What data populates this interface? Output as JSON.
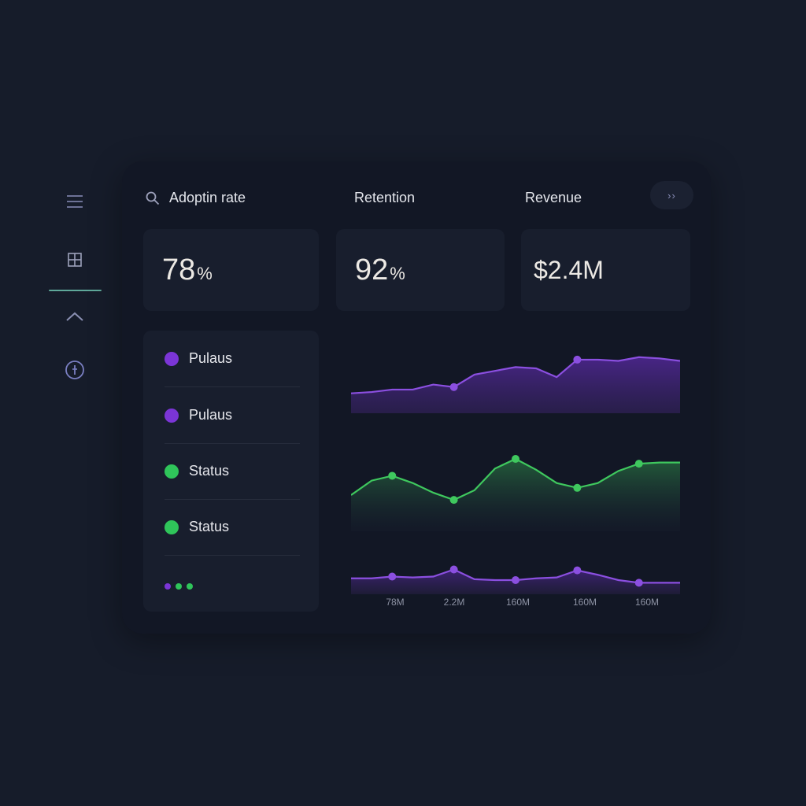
{
  "sidebar": {
    "icons": [
      {
        "name": "menu-icon"
      },
      {
        "name": "grid-icon"
      },
      {
        "name": "chevron-up-icon"
      },
      {
        "name": "info-icon"
      }
    ],
    "active_indicator_color": "#5fa89a"
  },
  "header": {
    "search_icon": "search-icon",
    "columns": [
      {
        "label": "Adoptin rate"
      },
      {
        "label": "Retention"
      },
      {
        "label": "Revenue"
      }
    ],
    "more_button_label": "››"
  },
  "metrics": [
    {
      "label": "Adoptin rate",
      "value": "78",
      "unit": "%"
    },
    {
      "label": "Retention",
      "value": "92",
      "unit": "%"
    },
    {
      "label": "Revenue",
      "value": "$2.4M",
      "unit": ""
    }
  ],
  "status_list": {
    "items": [
      {
        "label": "Pulaus",
        "color": "#7b35d6"
      },
      {
        "label": "Pulaus",
        "color": "#7b35d6"
      },
      {
        "label": "Status",
        "color": "#2fc55a"
      },
      {
        "label": "Status",
        "color": "#2fc55a"
      }
    ],
    "pager_dots": [
      "#7b35d6",
      "#2fc55a",
      "#2fc55a"
    ]
  },
  "colors": {
    "purple": "#8b4fe0",
    "green": "#3fc85e",
    "background": "#161c2a",
    "panel": "#121725",
    "card": "#181e2d"
  },
  "chart_data": [
    {
      "type": "area",
      "title": "",
      "series": [
        {
          "name": "purple-top",
          "color": "#8b4fe0",
          "values": [
            16,
            17,
            19,
            19,
            23,
            21,
            31,
            34,
            37,
            36,
            29,
            43,
            43,
            42,
            45,
            44,
            42
          ]
        }
      ],
      "markers": [
        5,
        11
      ],
      "ylim": [
        0,
        60
      ]
    },
    {
      "type": "area",
      "title": "",
      "series": [
        {
          "name": "green-middle",
          "color": "#3fc85e",
          "values": [
            30,
            42,
            46,
            40,
            32,
            26,
            34,
            52,
            60,
            51,
            40,
            36,
            40,
            50,
            56,
            57,
            57
          ]
        }
      ],
      "markers": [
        2,
        5,
        8,
        11,
        14
      ],
      "ylim": [
        0,
        75
      ]
    },
    {
      "type": "area",
      "title": "",
      "xlabels": [
        "78M",
        "2.2M",
        "160M",
        "160M",
        "160M"
      ],
      "series": [
        {
          "name": "purple-bottom",
          "color": "#8b4fe0",
          "values": [
            18,
            18,
            20,
            19,
            20,
            28,
            17,
            16,
            16,
            18,
            19,
            27,
            22,
            16,
            13,
            13,
            13
          ]
        }
      ],
      "markers": [
        2,
        5,
        8,
        11,
        14
      ],
      "ylim": [
        0,
        40
      ]
    }
  ]
}
